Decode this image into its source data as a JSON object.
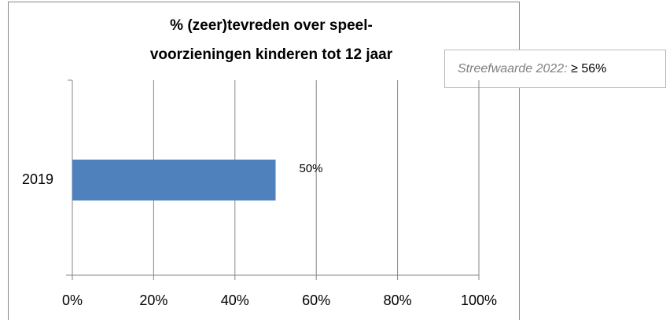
{
  "chart_data": {
    "type": "barh",
    "title": [
      "% (zeer)tevreden over speel-",
      "voorzieningen kinderen tot 12 jaar"
    ],
    "annotation": {
      "label": "Streefwaarde 2022:",
      "value_text": "≥ 56%"
    },
    "categories": [
      "2019"
    ],
    "values": [
      50
    ],
    "value_labels": [
      "50%"
    ],
    "color": "#4f81bd",
    "xlim": [
      0,
      100
    ],
    "xticks": [
      {
        "value": 0,
        "label": "0%"
      },
      {
        "value": 20,
        "label": "20%"
      },
      {
        "value": 40,
        "label": "40%"
      },
      {
        "value": 60,
        "label": "60%"
      },
      {
        "value": 80,
        "label": "80%"
      },
      {
        "value": 100,
        "label": "100%"
      }
    ],
    "grid": true
  }
}
